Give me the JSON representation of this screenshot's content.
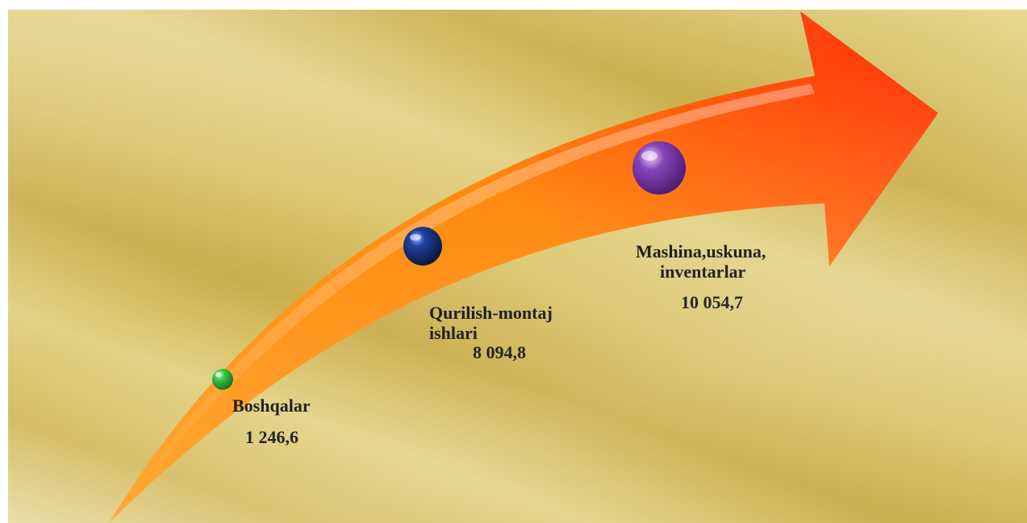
{
  "diagram": {
    "items": [
      {
        "name_lines": [
          "Boshqalar"
        ],
        "value": "1 246,6",
        "dot_color": "#1fae2a"
      },
      {
        "name_lines": [
          "Qurilish-montaj",
          "ishlari"
        ],
        "value": "8 094,8",
        "dot_color": "#10246e"
      },
      {
        "name_lines": [
          "Mashina,uskuna,",
          "inventarlar"
        ],
        "value": "10 054,7",
        "dot_color": "#7a3aa8"
      }
    ],
    "colors": {
      "arrow_start": "#ff8c12",
      "arrow_end": "#ff2a0a"
    }
  }
}
